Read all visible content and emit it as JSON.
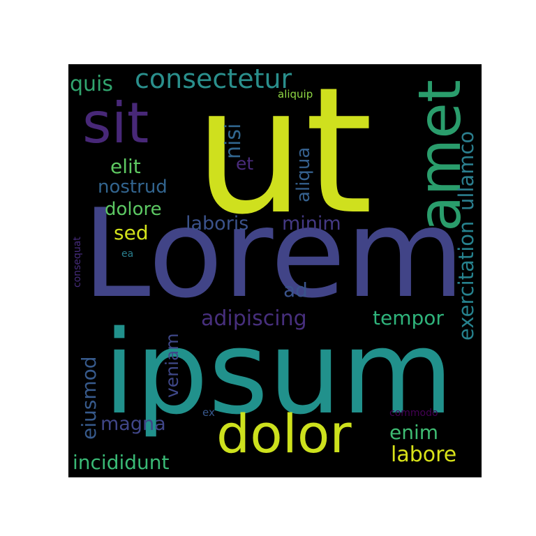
{
  "word_cloud": {
    "words": [
      {
        "text": "ut",
        "color": "#cfe01e",
        "rotated": false
      },
      {
        "text": "Lorem",
        "color": "#414487",
        "rotated": false
      },
      {
        "text": "ipsum",
        "color": "#21918c",
        "rotated": false
      },
      {
        "text": "dolor",
        "color": "#cde11d",
        "rotated": false
      },
      {
        "text": "amet",
        "color": "#2a9d6c",
        "rotated": true
      },
      {
        "text": "sit",
        "color": "#482878",
        "rotated": false
      },
      {
        "text": "consectetur",
        "color": "#2a8f8c",
        "rotated": false
      },
      {
        "text": "quis",
        "color": "#31a56e",
        "rotated": false
      },
      {
        "text": "aliquip",
        "color": "#8fd744",
        "rotated": false
      },
      {
        "text": "nisi",
        "color": "#31668e",
        "rotated": true
      },
      {
        "text": "exercitation",
        "color": "#26828e",
        "rotated": true
      },
      {
        "text": "ullamco",
        "color": "#2b7e8e",
        "rotated": true
      },
      {
        "text": "elit",
        "color": "#5ec962",
        "rotated": false
      },
      {
        "text": "et",
        "color": "#4a2b7c",
        "rotated": false
      },
      {
        "text": "aliqua",
        "color": "#35608d",
        "rotated": true
      },
      {
        "text": "nostrud",
        "color": "#32648e",
        "rotated": false
      },
      {
        "text": "dolore",
        "color": "#5cc863",
        "rotated": false
      },
      {
        "text": "laboris",
        "color": "#3b528b",
        "rotated": false
      },
      {
        "text": "minim",
        "color": "#443983",
        "rotated": false
      },
      {
        "text": "sed",
        "color": "#d2e21b",
        "rotated": false
      },
      {
        "text": "consequat",
        "color": "#462c7c",
        "rotated": true
      },
      {
        "text": "ea",
        "color": "#2a7f8e",
        "rotated": false
      },
      {
        "text": "ad",
        "color": "#3a538b",
        "rotated": false
      },
      {
        "text": "adipiscing",
        "color": "#472f7d",
        "rotated": false
      },
      {
        "text": "tempor",
        "color": "#2fb47c",
        "rotated": false
      },
      {
        "text": "veniam",
        "color": "#3f4889",
        "rotated": true
      },
      {
        "text": "eiusmod",
        "color": "#375a8c",
        "rotated": true
      },
      {
        "text": "magna",
        "color": "#404688",
        "rotated": false
      },
      {
        "text": "ex",
        "color": "#38588c",
        "rotated": false
      },
      {
        "text": "commodo",
        "color": "#440154",
        "rotated": false
      },
      {
        "text": "enim",
        "color": "#3fbc73",
        "rotated": false
      },
      {
        "text": "labore",
        "color": "#d8e219",
        "rotated": false
      },
      {
        "text": "incididunt",
        "color": "#3aba76",
        "rotated": false
      }
    ]
  }
}
